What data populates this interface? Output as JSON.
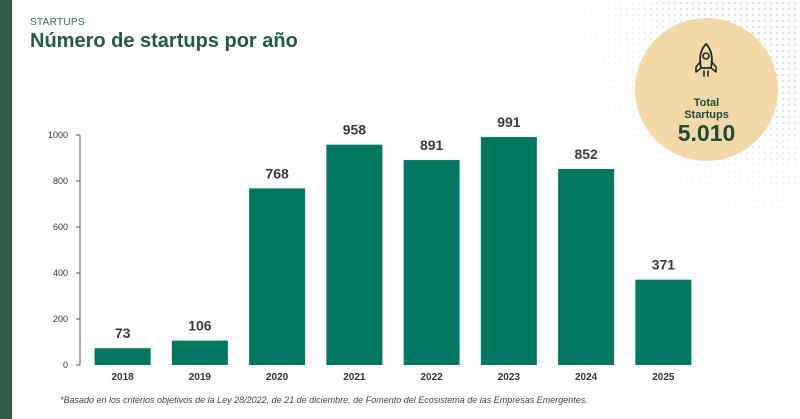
{
  "header": {
    "kicker": "STARTUPS",
    "title": "Número de startups por año"
  },
  "total": {
    "icon": "rocket-icon",
    "label_line1": "Total",
    "label_line2": "Startups",
    "value": "5.010"
  },
  "footnote": "*Basado en los criterios objetivos de la  Ley 28/2022, de 21 de diciembre, de Fomento del Ecosistema de las Empresas Emergentes.",
  "colors": {
    "bar": "#007760",
    "accent_circle": "#f3d9a8",
    "sidebar": "#2f5b47",
    "title": "#1f5a45"
  },
  "chart_data": {
    "type": "bar",
    "title": "Número de startups por año",
    "xlabel": "",
    "ylabel": "",
    "categories": [
      "2018",
      "2019",
      "2020",
      "2021",
      "2022",
      "2023",
      "2024",
      "2025"
    ],
    "values": [
      73,
      106,
      768,
      958,
      891,
      991,
      852,
      371
    ],
    "value_labels": [
      "73",
      "106",
      "768",
      "958",
      "891",
      "991",
      "852",
      "371"
    ],
    "ylim": [
      0,
      1000
    ],
    "yticks": [
      0,
      200,
      400,
      600,
      800,
      1000
    ],
    "grid": false
  }
}
